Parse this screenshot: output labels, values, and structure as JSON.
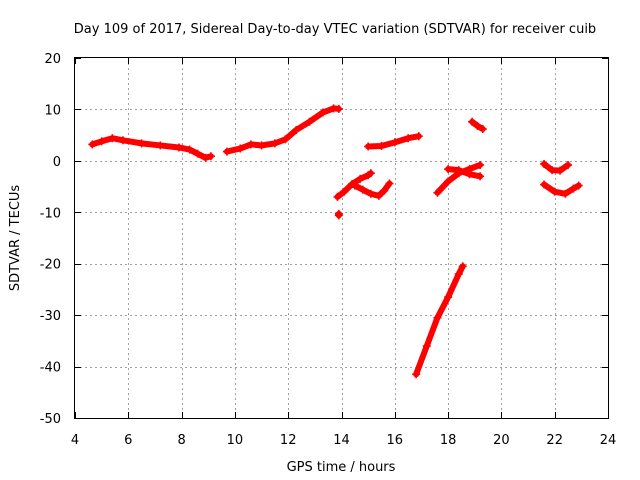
{
  "chart_data": {
    "type": "scatter",
    "title": "Day 109 of 2017, Sidereal Day-to-day VTEC variation (SDTVAR) for receiver cuib",
    "xlabel": "GPS time / hours",
    "ylabel": "SDTVAR / TECUs",
    "xlim": [
      4,
      24
    ],
    "ylim": [
      -50,
      20
    ],
    "xticks": [
      4,
      6,
      8,
      10,
      12,
      14,
      16,
      18,
      20,
      22,
      24
    ],
    "yticks": [
      -50,
      -40,
      -30,
      -20,
      -10,
      0,
      10,
      20
    ],
    "grid": true,
    "legend": "none",
    "color": "#ff0000",
    "segments": [
      {
        "points": [
          [
            4.65,
            3.2
          ],
          [
            5.0,
            3.8
          ],
          [
            5.4,
            4.4
          ],
          [
            5.8,
            4.0
          ],
          [
            6.5,
            3.4
          ],
          [
            7.2,
            3.0
          ],
          [
            7.9,
            2.6
          ],
          [
            8.3,
            2.2
          ],
          [
            8.6,
            1.4
          ],
          [
            8.9,
            0.6
          ],
          [
            9.1,
            0.9
          ]
        ]
      },
      {
        "points": [
          [
            9.7,
            1.8
          ],
          [
            10.2,
            2.4
          ],
          [
            10.6,
            3.2
          ],
          [
            11.0,
            3.0
          ],
          [
            11.5,
            3.4
          ],
          [
            11.9,
            4.2
          ],
          [
            12.3,
            6.0
          ],
          [
            12.8,
            7.6
          ],
          [
            13.3,
            9.4
          ],
          [
            13.7,
            10.2
          ],
          [
            13.9,
            10.1
          ]
        ]
      },
      {
        "points": [
          [
            13.85,
            -7.0
          ],
          [
            14.1,
            -6.0
          ],
          [
            14.4,
            -4.5
          ],
          [
            14.7,
            -3.5
          ],
          [
            15.0,
            -2.8
          ],
          [
            15.1,
            -2.4
          ]
        ]
      },
      {
        "points": [
          [
            14.5,
            -4.8
          ],
          [
            14.8,
            -5.6
          ],
          [
            15.1,
            -6.4
          ],
          [
            15.4,
            -6.8
          ],
          [
            15.6,
            -5.8
          ],
          [
            15.8,
            -4.4
          ]
        ]
      },
      {
        "points": [
          [
            13.9,
            -10.3
          ],
          [
            13.9,
            -10.6
          ]
        ]
      },
      {
        "points": [
          [
            15.0,
            2.8
          ],
          [
            15.5,
            2.9
          ],
          [
            16.0,
            3.6
          ],
          [
            16.5,
            4.4
          ],
          [
            16.9,
            4.8
          ]
        ]
      },
      {
        "points": [
          [
            16.8,
            -41.5
          ],
          [
            17.2,
            -36.0
          ],
          [
            17.6,
            -30.5
          ],
          [
            18.0,
            -26.5
          ],
          [
            18.4,
            -22.0
          ],
          [
            18.55,
            -20.5
          ]
        ]
      },
      {
        "points": [
          [
            17.6,
            -6.2
          ],
          [
            18.0,
            -4.0
          ],
          [
            18.4,
            -2.4
          ],
          [
            18.8,
            -1.6
          ],
          [
            19.2,
            -0.8
          ]
        ]
      },
      {
        "points": [
          [
            18.0,
            -1.6
          ],
          [
            18.4,
            -1.8
          ],
          [
            18.8,
            -2.6
          ],
          [
            19.2,
            -3.0
          ]
        ]
      },
      {
        "points": [
          [
            18.9,
            7.6
          ],
          [
            19.1,
            6.8
          ],
          [
            19.3,
            6.2
          ]
        ]
      },
      {
        "points": [
          [
            21.6,
            -0.6
          ],
          [
            21.9,
            -1.8
          ],
          [
            22.2,
            -1.9
          ],
          [
            22.5,
            -0.8
          ]
        ]
      },
      {
        "points": [
          [
            21.6,
            -4.6
          ],
          [
            22.0,
            -6.0
          ],
          [
            22.4,
            -6.4
          ],
          [
            22.7,
            -5.4
          ],
          [
            22.9,
            -4.8
          ]
        ]
      }
    ]
  }
}
